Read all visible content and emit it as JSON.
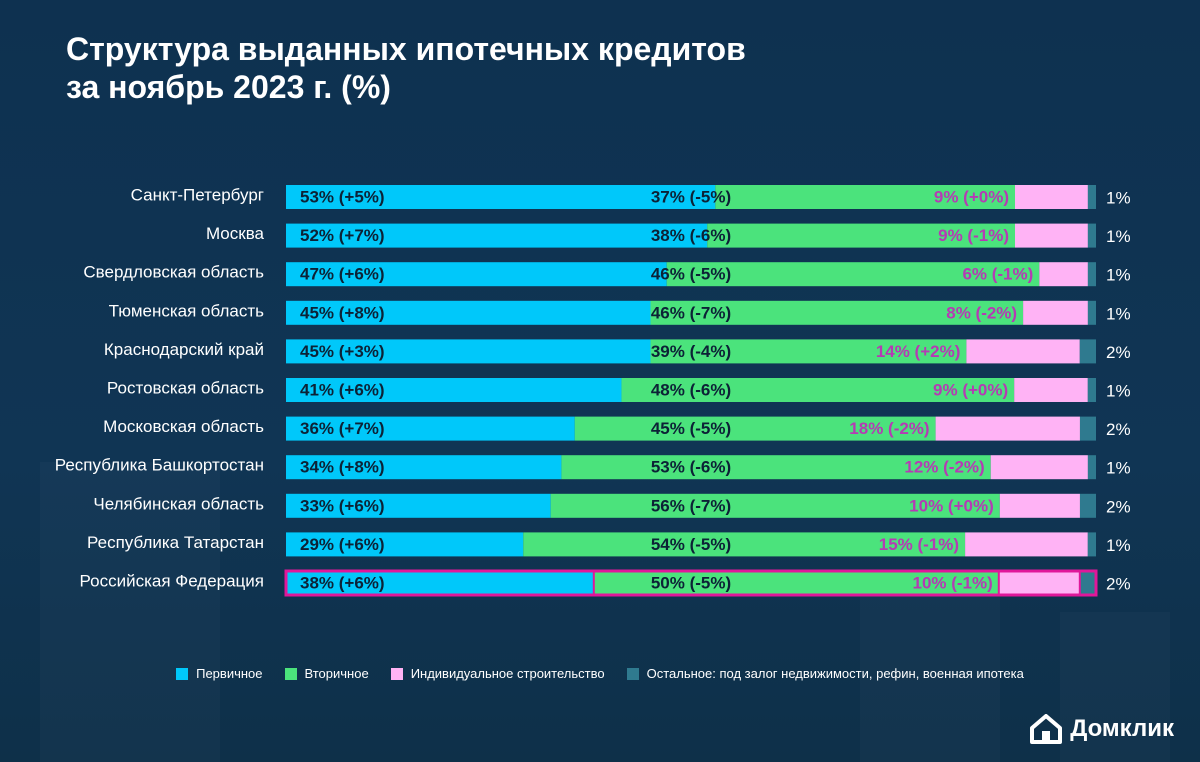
{
  "title": {
    "line1": "Структура выданных ипотечных кредитов",
    "line2": "за ноябрь 2023 г. (%)"
  },
  "legend": [
    {
      "label": "Первичное",
      "color": "#00c8fa"
    },
    {
      "label": "Вторичное",
      "color": "#4be37c"
    },
    {
      "label": "Индивидуальное строительство",
      "color": "#ffb3f5"
    },
    {
      "label": "Остальное: под залог недвижимости, рефин, военная ипотека",
      "color": "#2f7a8f"
    }
  ],
  "logo": {
    "text": "Домклик",
    "icon": "house-icon"
  },
  "colors": {
    "primary": "#00c8fa",
    "secondary": "#4be37c",
    "individual": "#ffb3f5",
    "other": "#2f7a8f",
    "highlight": "#e0179a",
    "label_dark": "#0c2236",
    "label_pink": "#b53bb4"
  },
  "chart_data": {
    "type": "bar",
    "orientation": "horizontal",
    "stacked": true,
    "title": "Структура выданных ипотечных кредитов за ноябрь 2023 г. (%)",
    "xlim": [
      0,
      100
    ],
    "categories": [
      "Санкт-Петербург",
      "Москва",
      "Свердловская область",
      "Тюменская область",
      "Краснодарский край",
      "Ростовская область",
      "Московская область",
      "Республика Башкортостан",
      "Челябинская область",
      "Республика Татарстан",
      "Российская Федерация"
    ],
    "highlighted_category": "Российская Федерация",
    "series": [
      {
        "name": "Первичное",
        "values": [
          53,
          52,
          47,
          45,
          45,
          41,
          36,
          34,
          33,
          29,
          38
        ],
        "labels": [
          "53% (+5%)",
          "52% (+7%)",
          "47% (+6%)",
          "45% (+8%)",
          "45% (+3%)",
          "41% (+6%)",
          "36% (+7%)",
          "34% (+8%)",
          "33% (+6%)",
          "29% (+6%)",
          "38% (+6%)"
        ]
      },
      {
        "name": "Вторичное",
        "values": [
          37,
          38,
          46,
          46,
          39,
          48,
          45,
          53,
          56,
          54,
          50
        ],
        "labels": [
          "37% (-5%)",
          "38% (-6%)",
          "46% (-5%)",
          "46% (-7%)",
          "39% (-4%)",
          "48% (-6%)",
          "45% (-5%)",
          "53% (-6%)",
          "56% (-7%)",
          "54% (-5%)",
          "50% (-5%)"
        ]
      },
      {
        "name": "Индивидуальное строительство",
        "values": [
          9,
          9,
          6,
          8,
          14,
          9,
          18,
          12,
          10,
          15,
          10
        ],
        "labels": [
          "9% (+0%)",
          "9% (-1%)",
          "6% (-1%)",
          "8% (-2%)",
          "14% (+2%)",
          "9% (+0%)",
          "18% (-2%)",
          "12% (-2%)",
          "10% (+0%)",
          "15% (-1%)",
          "10% (-1%)"
        ]
      },
      {
        "name": "Остальное: под залог недвижимости, рефин, военная ипотека",
        "values": [
          1,
          1,
          1,
          1,
          2,
          1,
          2,
          1,
          2,
          1,
          2
        ],
        "labels": [
          "1%",
          "1%",
          "1%",
          "1%",
          "2%",
          "1%",
          "2%",
          "1%",
          "2%",
          "1%",
          "2%"
        ]
      }
    ]
  }
}
